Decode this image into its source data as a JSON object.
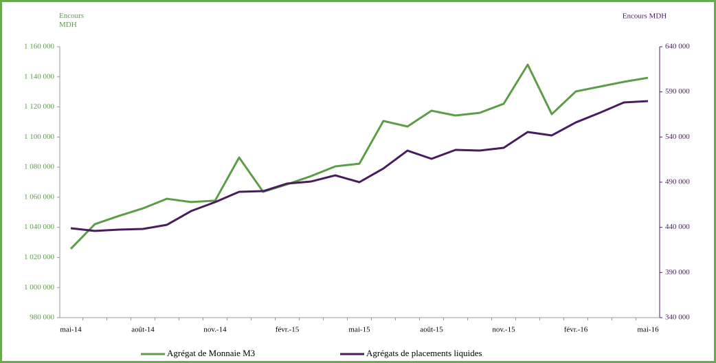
{
  "chart_data": {
    "type": "line",
    "y_title": "Encours MDH",
    "y2_title": "Encours MDH",
    "categories": [
      "mai-14",
      null,
      null,
      "août-14",
      null,
      null,
      "nov.-14",
      null,
      null,
      "févr.-15",
      null,
      null,
      "mai-15",
      null,
      null,
      "août-15",
      null,
      null,
      "nov.-15",
      null,
      null,
      "févr.-16",
      null,
      null,
      "mai-16"
    ],
    "series": [
      {
        "name": "Agrégat de Monnaie M3",
        "color": "#5b9e47",
        "axis": "y",
        "values": [
          1025700,
          1042100,
          1047600,
          1052600,
          1059000,
          1056800,
          1057700,
          1086400,
          1063600,
          1068600,
          1074100,
          1080500,
          1082300,
          1110700,
          1107000,
          1117500,
          1114300,
          1116100,
          1122100,
          1148100,
          1115200,
          1130300,
          1133500,
          1136700,
          1139400
        ]
      },
      {
        "name": "Agrégats de placements liquides",
        "color": "#4a1b5e",
        "axis": "y2",
        "values": [
          439000,
          436000,
          437500,
          438200,
          442800,
          458000,
          467900,
          479300,
          480100,
          488500,
          490800,
          497600,
          490000,
          505200,
          525000,
          515900,
          525800,
          525000,
          528100,
          545600,
          541800,
          556200,
          566900,
          578300,
          579800
        ]
      }
    ],
    "ylim": [
      980000,
      1160000
    ],
    "yticks": [
      {
        "value": 980000,
        "label": "980 000"
      },
      {
        "value": 1000000,
        "label": "1 000 000"
      },
      {
        "value": 1020000,
        "label": "1 020 000"
      },
      {
        "value": 1040000,
        "label": "1 040 000"
      },
      {
        "value": 1060000,
        "label": "1 060 000"
      },
      {
        "value": 1080000,
        "label": "1 080 000"
      },
      {
        "value": 1100000,
        "label": "1 100 000"
      },
      {
        "value": 1120000,
        "label": "1 120 000"
      },
      {
        "value": 1140000,
        "label": "1 140 000"
      },
      {
        "value": 1160000,
        "label": "1 160 000"
      }
    ],
    "y2lim": [
      340000,
      640000
    ],
    "y2ticks": [
      {
        "value": 340000,
        "label": "340 000"
      },
      {
        "value": 390000,
        "label": "390 000"
      },
      {
        "value": 440000,
        "label": "440 000"
      },
      {
        "value": 490000,
        "label": "490 000"
      },
      {
        "value": 540000,
        "label": "540 000"
      },
      {
        "value": 590000,
        "label": "590 000"
      },
      {
        "value": 640000,
        "label": "640 000"
      }
    ],
    "legend": "bottom"
  }
}
